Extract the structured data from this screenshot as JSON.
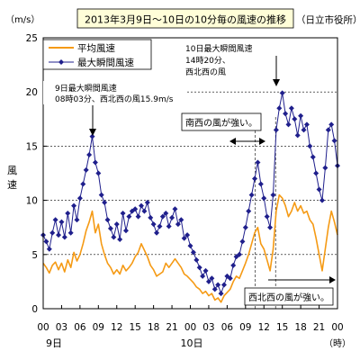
{
  "title": "2013年3月9日～10日の10分毎の風速の推移",
  "source": "（日立市役所）",
  "unit_label": "（m/s）",
  "y_axis_label": [
    "風",
    "速"
  ],
  "hour_unit_label": "（時）",
  "day_labels": [
    "9日",
    "10日"
  ],
  "annotations": {
    "peak_9th": [
      "9日最大瞬間風速",
      "08時03分、西北西の風15.9m/s"
    ],
    "peak_10th": [
      "10日最大瞬間風速",
      "14時20分、",
      "西北西の風"
    ],
    "sw_strong": "南西の風が強い。",
    "wnw_strong": "西北西の風が強い。"
  },
  "colors": {
    "average": "#f59a14",
    "gust": "#1f1f8c",
    "grid": "#000000",
    "frame": "#000000",
    "title_box_bg": "#fffed8"
  },
  "chart_data": {
    "type": "line",
    "title": "2013年3月9日～10日の10分毎の風速の推移",
    "ylabel": "風速",
    "yunit": "m/s",
    "ylim": [
      0,
      25
    ],
    "yticks": [
      0,
      5,
      10,
      15,
      20,
      25
    ],
    "xlim": [
      0,
      48
    ],
    "xticks": [
      0,
      3,
      6,
      9,
      12,
      15,
      18,
      21,
      24,
      27,
      30,
      33,
      36,
      39,
      42,
      45,
      48
    ],
    "xticklabels": [
      "00",
      "03",
      "06",
      "09",
      "12",
      "15",
      "18",
      "21",
      "00",
      "03",
      "06",
      "09",
      "12",
      "15",
      "18",
      "21",
      "00"
    ],
    "grid": "horizontal dashed",
    "legend": "top-left",
    "series": [
      {
        "name": "平均風速",
        "marker": "none",
        "points": [
          [
            0,
            4.2
          ],
          [
            0.5,
            3.8
          ],
          [
            1,
            3.3
          ],
          [
            1.5,
            4.0
          ],
          [
            2,
            4.3
          ],
          [
            2.5,
            3.6
          ],
          [
            3,
            4.2
          ],
          [
            3.5,
            3.4
          ],
          [
            4,
            4.5
          ],
          [
            4.5,
            3.8
          ],
          [
            5,
            5.2
          ],
          [
            5.5,
            4.4
          ],
          [
            6,
            5.0
          ],
          [
            6.5,
            6.0
          ],
          [
            7,
            7.2
          ],
          [
            7.5,
            8.0
          ],
          [
            8,
            9.0
          ],
          [
            8.5,
            7.0
          ],
          [
            9,
            7.8
          ],
          [
            9.5,
            6.0
          ],
          [
            10,
            5.0
          ],
          [
            10.5,
            4.2
          ],
          [
            11,
            3.8
          ],
          [
            11.5,
            3.2
          ],
          [
            12,
            3.6
          ],
          [
            12.5,
            3.2
          ],
          [
            13,
            4.0
          ],
          [
            13.5,
            3.5
          ],
          [
            14,
            3.8
          ],
          [
            14.5,
            4.2
          ],
          [
            15,
            4.8
          ],
          [
            15.5,
            5.2
          ],
          [
            16,
            6.0
          ],
          [
            16.5,
            5.4
          ],
          [
            17,
            4.8
          ],
          [
            17.5,
            4.0
          ],
          [
            18,
            3.6
          ],
          [
            18.5,
            3.0
          ],
          [
            19,
            3.2
          ],
          [
            19.5,
            3.4
          ],
          [
            20,
            4.2
          ],
          [
            20.5,
            3.8
          ],
          [
            21,
            4.2
          ],
          [
            21.5,
            4.6
          ],
          [
            22,
            4.2
          ],
          [
            22.5,
            3.8
          ],
          [
            23,
            3.2
          ],
          [
            23.5,
            3.0
          ],
          [
            24,
            2.7
          ],
          [
            24.5,
            2.4
          ],
          [
            25,
            2.0
          ],
          [
            25.5,
            1.8
          ],
          [
            26,
            1.4
          ],
          [
            26.5,
            1.6
          ],
          [
            27,
            1.2
          ],
          [
            27.5,
            1.4
          ],
          [
            28,
            0.8
          ],
          [
            28.5,
            1.0
          ],
          [
            29,
            0.6
          ],
          [
            29.5,
            1.2
          ],
          [
            30,
            1.5
          ],
          [
            30.5,
            1.8
          ],
          [
            31,
            2.5
          ],
          [
            31.5,
            3.0
          ],
          [
            32,
            2.8
          ],
          [
            32.5,
            3.5
          ],
          [
            33,
            4.2
          ],
          [
            33.5,
            5.0
          ],
          [
            34,
            6.0
          ],
          [
            34.5,
            7.0
          ],
          [
            35,
            7.5
          ],
          [
            35.5,
            6.0
          ],
          [
            36,
            5.5
          ],
          [
            36.5,
            4.5
          ],
          [
            37,
            3.5
          ],
          [
            37.5,
            5.5
          ],
          [
            38,
            9.0
          ],
          [
            38.5,
            10.5
          ],
          [
            39,
            10.2
          ],
          [
            39.5,
            9.5
          ],
          [
            40,
            8.5
          ],
          [
            40.5,
            9.0
          ],
          [
            41,
            9.8
          ],
          [
            41.5,
            9.0
          ],
          [
            42,
            9.5
          ],
          [
            42.5,
            8.8
          ],
          [
            43,
            9.0
          ],
          [
            43.5,
            8.2
          ],
          [
            44,
            7.8
          ],
          [
            44.5,
            6.5
          ],
          [
            45,
            5.0
          ],
          [
            45.5,
            3.5
          ],
          [
            46,
            5.5
          ],
          [
            46.5,
            7.5
          ],
          [
            47,
            9.0
          ],
          [
            47.5,
            8.0
          ],
          [
            48,
            6.8
          ]
        ]
      },
      {
        "name": "最大瞬間風速",
        "marker": "diamond",
        "points": [
          [
            0,
            6.8
          ],
          [
            0.5,
            6.2
          ],
          [
            1,
            5.5
          ],
          [
            1.5,
            7.0
          ],
          [
            2,
            8.2
          ],
          [
            2.5,
            6.8
          ],
          [
            3,
            8.0
          ],
          [
            3.5,
            6.6
          ],
          [
            4,
            8.8
          ],
          [
            4.5,
            7.0
          ],
          [
            5,
            9.5
          ],
          [
            5.5,
            8.2
          ],
          [
            6,
            10.2
          ],
          [
            6.5,
            11.5
          ],
          [
            7,
            12.8
          ],
          [
            7.5,
            14.2
          ],
          [
            8,
            15.9
          ],
          [
            8.5,
            13.5
          ],
          [
            9,
            12.5
          ],
          [
            9.5,
            10.5
          ],
          [
            10,
            9.8
          ],
          [
            10.5,
            8.2
          ],
          [
            11,
            7.4
          ],
          [
            11.5,
            6.6
          ],
          [
            12,
            7.8
          ],
          [
            12.5,
            6.4
          ],
          [
            13,
            8.8
          ],
          [
            13.5,
            7.2
          ],
          [
            14,
            8.5
          ],
          [
            14.5,
            9.0
          ],
          [
            15,
            9.2
          ],
          [
            15.5,
            8.5
          ],
          [
            16,
            9.5
          ],
          [
            16.5,
            9.0
          ],
          [
            17,
            9.8
          ],
          [
            17.5,
            8.4
          ],
          [
            18,
            7.8
          ],
          [
            18.5,
            7.0
          ],
          [
            19,
            7.6
          ],
          [
            19.5,
            8.5
          ],
          [
            20,
            8.8
          ],
          [
            20.5,
            7.6
          ],
          [
            21,
            8.4
          ],
          [
            21.5,
            9.2
          ],
          [
            22,
            7.8
          ],
          [
            22.5,
            8.2
          ],
          [
            23,
            6.5
          ],
          [
            23.5,
            6.8
          ],
          [
            24,
            5.8
          ],
          [
            24.5,
            5.2
          ],
          [
            25,
            4.5
          ],
          [
            25.5,
            3.8
          ],
          [
            26,
            3.0
          ],
          [
            26.5,
            3.5
          ],
          [
            27,
            2.5
          ],
          [
            27.5,
            2.8
          ],
          [
            28,
            1.8
          ],
          [
            28.5,
            2.2
          ],
          [
            29,
            1.4
          ],
          [
            29.5,
            2.2
          ],
          [
            30,
            3.0
          ],
          [
            30.5,
            2.8
          ],
          [
            31,
            4.0
          ],
          [
            31.5,
            4.8
          ],
          [
            32,
            5.0
          ],
          [
            32.5,
            6.2
          ],
          [
            33,
            7.5
          ],
          [
            33.5,
            9.0
          ],
          [
            34,
            10.5
          ],
          [
            34.5,
            12.0
          ],
          [
            35,
            13.5
          ],
          [
            35.5,
            11.5
          ],
          [
            36,
            10.2
          ],
          [
            36.5,
            8.5
          ],
          [
            37,
            7.5
          ],
          [
            37.5,
            10.5
          ],
          [
            38,
            16.5
          ],
          [
            38.5,
            18.5
          ],
          [
            39,
            19.9
          ],
          [
            39.5,
            18.0
          ],
          [
            40,
            17.0
          ],
          [
            40.5,
            18.5
          ],
          [
            41,
            17.5
          ],
          [
            41.5,
            16.0
          ],
          [
            42,
            17.8
          ],
          [
            42.5,
            16.5
          ],
          [
            43,
            17.0
          ],
          [
            43.5,
            15.0
          ],
          [
            44,
            14.0
          ],
          [
            44.5,
            12.5
          ],
          [
            45,
            11.0
          ],
          [
            45.5,
            10.0
          ],
          [
            46,
            13.0
          ],
          [
            46.5,
            16.5
          ],
          [
            47,
            17.0
          ],
          [
            47.5,
            15.5
          ],
          [
            48,
            13.2
          ]
        ]
      }
    ]
  }
}
